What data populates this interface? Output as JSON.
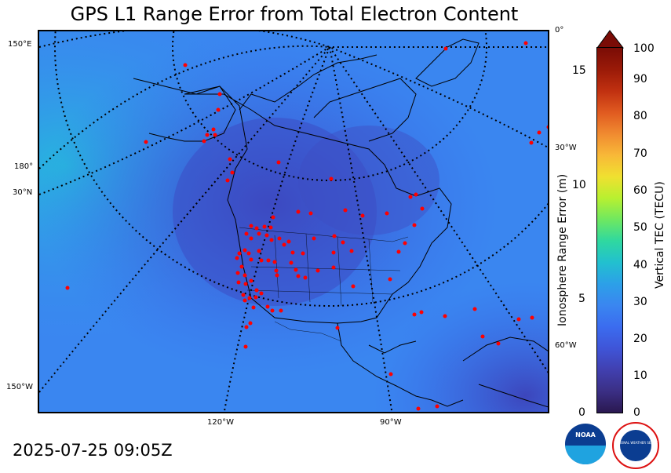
{
  "title": "GPS L1 Range Error from Total Electron Content",
  "timestamp": "2025-07-25 09:05Z",
  "graticule_labels": {
    "lon_150E": "150°E",
    "lon_180": "180°",
    "lat_30N": "30°N",
    "lon_150W": "150°W",
    "lon_0": "0°",
    "lon_30W": "30°W",
    "lon_60W": "60°W",
    "lon_120W": "120°W",
    "lon_90W": "90°W"
  },
  "colorbar": {
    "left_label": "Ionosphere Range Error (m)",
    "right_label": "Vertical TEC (TECU)",
    "left_ticks": [
      "0",
      "5",
      "10",
      "15"
    ],
    "right_ticks": [
      "0",
      "10",
      "20",
      "30",
      "40",
      "50",
      "60",
      "70",
      "80",
      "90",
      "100"
    ],
    "colors": [
      "#2a1850",
      "#3b2f85",
      "#4140b0",
      "#3f55d8",
      "#3b6cef",
      "#3a86f0",
      "#2ca0e8",
      "#22c0cf",
      "#2fd8a0",
      "#6fe860",
      "#b8f030",
      "#f0e030",
      "#f8b838",
      "#f08a30",
      "#e05a20",
      "#c03010",
      "#9a1a08",
      "#7a0c06"
    ]
  },
  "logos": {
    "noaa": "NOAA",
    "nws": "NATIONAL WEATHER SERVICE"
  },
  "colors": {
    "field_base": "#3a86f0",
    "field_light": "#2ea5e6",
    "field_dark": "#3f4fc8",
    "station": "#ff0000",
    "graticule": "#000000"
  }
}
